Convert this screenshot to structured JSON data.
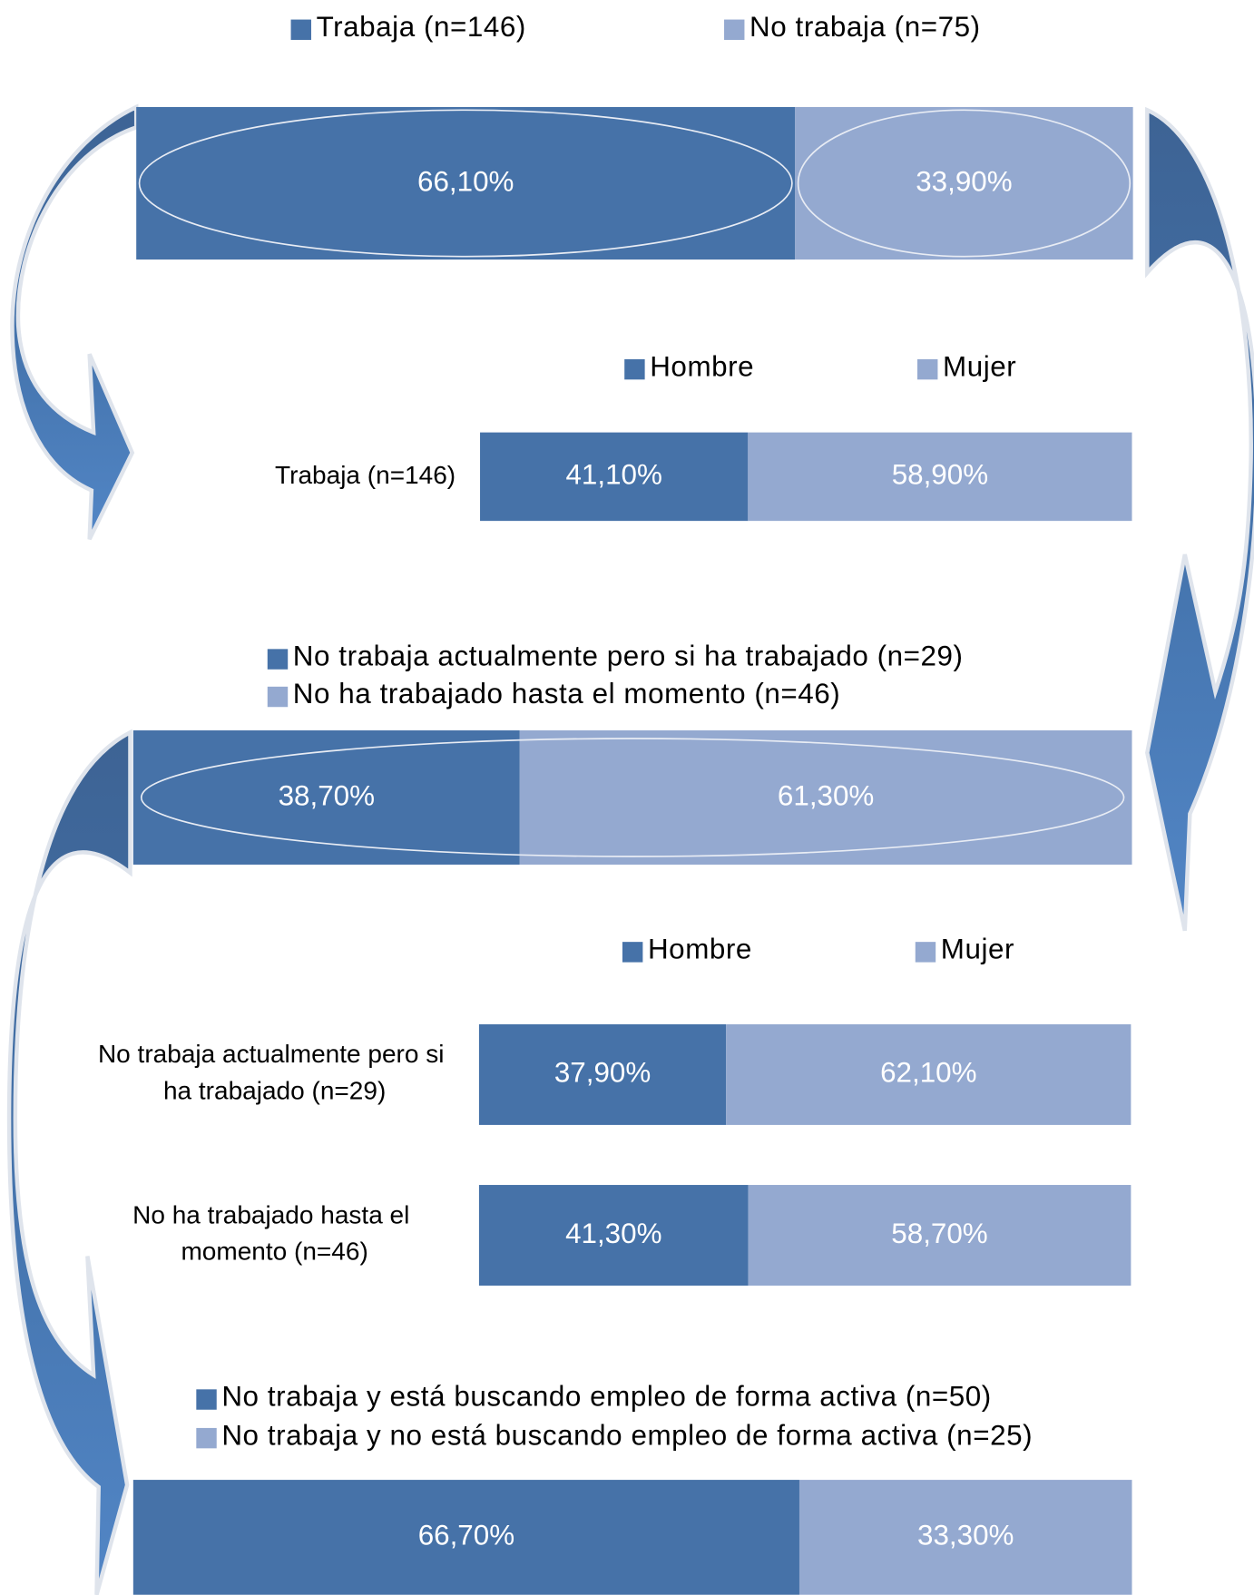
{
  "chart_data": [
    {
      "type": "bar",
      "series": [
        {
          "name": "Trabaja (n=146)",
          "color": "#4672a8",
          "values": [
            66.1
          ],
          "value_labels": [
            "66,10%"
          ]
        },
        {
          "name": "No trabaja (n=75)",
          "color": "#94a9d0",
          "values": [
            33.9
          ],
          "value_labels": [
            "33,90%"
          ]
        }
      ]
    },
    {
      "type": "bar",
      "categories": [
        "Trabaja (n=146)"
      ],
      "series": [
        {
          "name": "Hombre",
          "color": "#4672a8",
          "values": [
            41.1
          ],
          "value_labels": [
            "41,10%"
          ]
        },
        {
          "name": "Mujer",
          "color": "#94a9d0",
          "values": [
            58.9
          ],
          "value_labels": [
            "58,90%"
          ]
        }
      ]
    },
    {
      "type": "bar",
      "series": [
        {
          "name": "No trabaja actualmente pero si ha trabajado (n=29)",
          "color": "#4672a8",
          "values": [
            38.7
          ],
          "value_labels": [
            "38,70%"
          ]
        },
        {
          "name": "No ha trabajado hasta el momento (n=46)",
          "color": "#94a9d0",
          "values": [
            61.3
          ],
          "value_labels": [
            "61,30%"
          ]
        }
      ]
    },
    {
      "type": "bar",
      "categories": [
        "No trabaja actualmente pero si ha trabajado (n=29)",
        "No ha trabajado hasta el momento (n=46)"
      ],
      "series": [
        {
          "name": "Hombre",
          "color": "#4672a8",
          "values": [
            37.9,
            41.3
          ],
          "value_labels": [
            "37,90%",
            "41,30%"
          ]
        },
        {
          "name": "Mujer",
          "color": "#94a9d0",
          "values": [
            62.1,
            58.7
          ],
          "value_labels": [
            "62,10%",
            "58,70%"
          ]
        }
      ]
    },
    {
      "type": "bar",
      "series": [
        {
          "name": "No trabaja y está buscando empleo de forma activa (n=50)",
          "color": "#4672a8",
          "values": [
            66.7
          ],
          "value_labels": [
            "66,70%"
          ]
        },
        {
          "name": "No trabaja y no está buscando empleo de forma activa (n=25)",
          "color": "#94a9d0",
          "values": [
            33.3
          ],
          "value_labels": [
            "33,30%"
          ]
        }
      ]
    }
  ]
}
